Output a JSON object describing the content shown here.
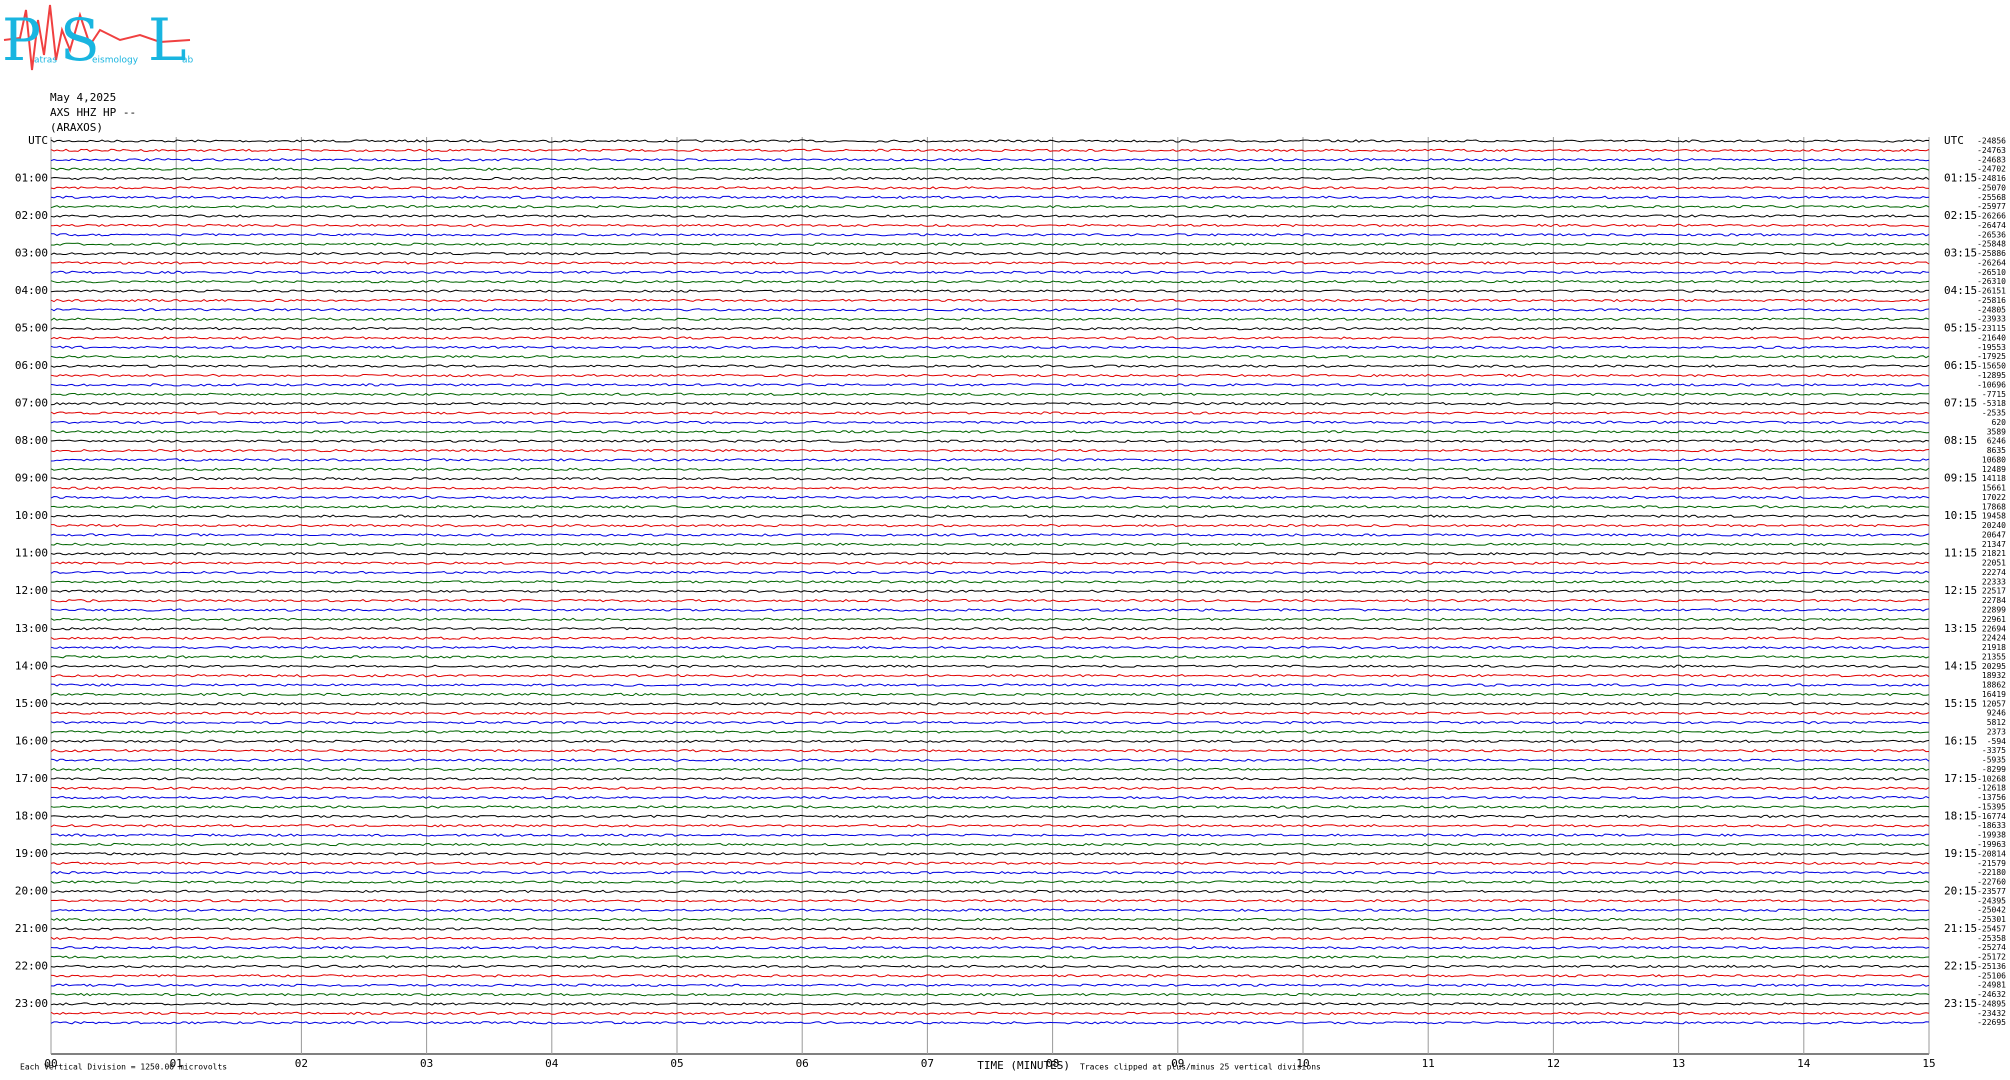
{
  "logo": {
    "p": "P",
    "atras": "atras",
    "s": "S",
    "eismology": "eismology",
    "l": "L",
    "ab": "ab"
  },
  "header": {
    "date": "May 4,2025",
    "station": "AXS HHZ HP --",
    "place": "(ARAXOS)"
  },
  "chart_data": {
    "type": "helicorder",
    "left_labels": [
      "UTC",
      "01:00",
      "02:00",
      "03:00",
      "04:00",
      "05:00",
      "06:00",
      "07:00",
      "08:00",
      "09:00",
      "10:00",
      "11:00",
      "12:00",
      "13:00",
      "14:00",
      "15:00",
      "16:00",
      "17:00",
      "18:00",
      "19:00",
      "20:00",
      "21:00",
      "22:00",
      "23:00"
    ],
    "right_labels": [
      "UTC",
      "01:15",
      "02:15",
      "03:15",
      "04:15",
      "05:15",
      "06:15",
      "07:15",
      "08:15",
      "09:15",
      "10:15",
      "11:15",
      "12:15",
      "13:15",
      "14:15",
      "15:15",
      "16:15",
      "17:15",
      "18:15",
      "19:15",
      "20:15",
      "21:15",
      "22:15",
      "23:15"
    ],
    "offsets": [
      -24856,
      -24763,
      -24683,
      -24702,
      -24816,
      -25070,
      -25568,
      -25977,
      -26266,
      -26474,
      -26536,
      -25848,
      -25886,
      -26264,
      -26510,
      -26310,
      -26151,
      -25816,
      -24805,
      -23933,
      -23115,
      -21640,
      -19553,
      -17925,
      -15650,
      -12895,
      -10696,
      -7715,
      -5318,
      -2535,
      620,
      3589,
      6246,
      8635,
      10680,
      12489,
      14118,
      15661,
      17022,
      17868,
      19458,
      20240,
      20647,
      21347,
      21821,
      22051,
      22274,
      22333,
      22517,
      22784,
      22899,
      22961,
      22694,
      22424,
      21918,
      21355,
      20295,
      18932,
      18862,
      16419,
      12057,
      9246,
      5812,
      2373,
      -594,
      -3375,
      -5935,
      -8299,
      -10268,
      -12618,
      -13756,
      -15395,
      -16774,
      -18633,
      -19938,
      -19963,
      -20814,
      -21579,
      -22180,
      -22760,
      -23577,
      -24395,
      -25042,
      -25301,
      -25457,
      -25358,
      -25274,
      -25172,
      -25136,
      -25106,
      -24981,
      -24632,
      -24895,
      -23432,
      -22695
    ],
    "trace_colors": [
      "#000000",
      "#e00000",
      "#0000e0",
      "#006400"
    ],
    "xlim": [
      0,
      15
    ],
    "xticks": [
      {
        "value": 0,
        "label": "00"
      },
      {
        "value": 1,
        "label": "01"
      },
      {
        "value": 2,
        "label": "02"
      },
      {
        "value": 3,
        "label": "03"
      },
      {
        "value": 4,
        "label": "04"
      },
      {
        "value": 5,
        "label": "05"
      },
      {
        "value": 6,
        "label": "06"
      },
      {
        "value": 7,
        "label": "07"
      },
      {
        "value": 8,
        "label": "08"
      },
      {
        "value": 9,
        "label": "09"
      },
      {
        "value": 10,
        "label": "10"
      },
      {
        "value": 11,
        "label": "11"
      },
      {
        "value": 12,
        "label": "12"
      },
      {
        "value": 13,
        "label": "13"
      },
      {
        "value": 14,
        "label": "14"
      },
      {
        "value": 15,
        "label": "15"
      }
    ],
    "xlabel": "TIME (MINUTES)",
    "scale_note": "Each Vertical Division = 1250.00 microvolts",
    "clip_note": "Traces clipped at plus/minus 25 vertical divisions"
  }
}
